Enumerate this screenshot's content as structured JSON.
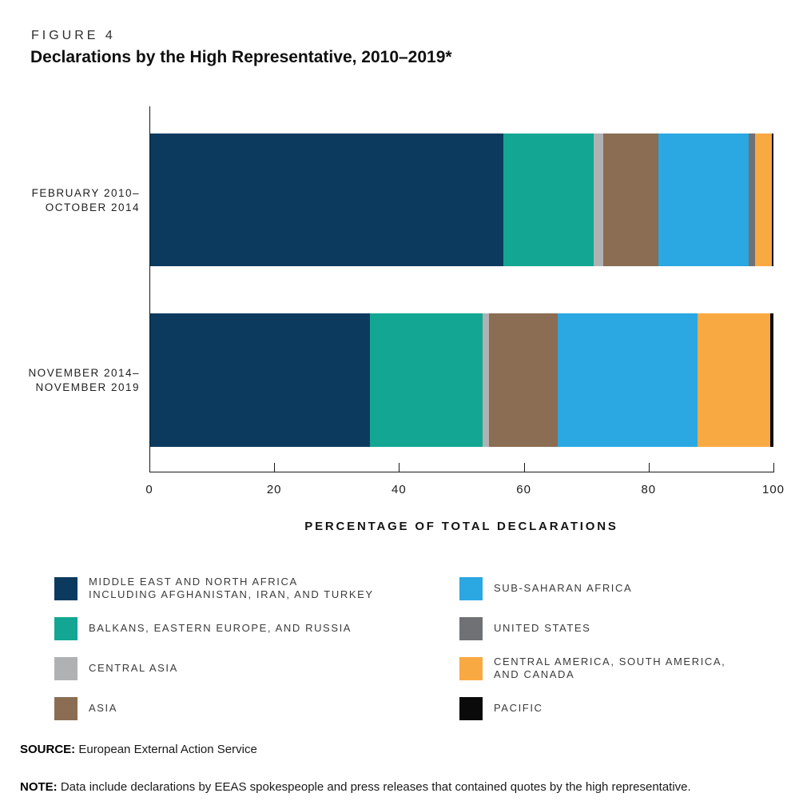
{
  "figure_label": "FIGURE 4",
  "title": "Declarations by the High Representative, 2010–2019*",
  "chart_data": {
    "type": "bar",
    "orientation": "horizontal",
    "stacked": true,
    "xlabel": "PERCENTAGE OF TOTAL DECLARATIONS",
    "xlim": [
      0,
      100
    ],
    "x_ticks": [
      "0",
      "20",
      "40",
      "60",
      "80",
      "100"
    ],
    "grid": false,
    "legend_position": "bottom",
    "categories": [
      {
        "line1": "FEBRUARY 2010–",
        "line2": "OCTOBER 2014"
      },
      {
        "line1": "NOVEMBER 2014–",
        "line2": "NOVEMBER 2019"
      }
    ],
    "series": [
      {
        "name": "MIDDLE EAST AND NORTH AFRICA INCLUDING AFGHANISTAN, IRAN, AND TURKEY",
        "color": "#0c3a5e",
        "values": [
          56.7,
          35.3
        ]
      },
      {
        "name": "BALKANS, EASTERN EUROPE, AND RUSSIA",
        "color": "#13a693",
        "values": [
          14.5,
          18.0
        ]
      },
      {
        "name": "CENTRAL ASIA",
        "color": "#b0b1b3",
        "values": [
          1.5,
          1.0
        ]
      },
      {
        "name": "ASIA",
        "color": "#8a6d52",
        "values": [
          8.8,
          11.1
        ]
      },
      {
        "name": "SUB-SAHARAN AFRICA",
        "color": "#2ba7e1",
        "values": [
          14.5,
          22.4
        ]
      },
      {
        "name": "UNITED STATES",
        "color": "#707174",
        "values": [
          1.1,
          0
        ]
      },
      {
        "name": "CENTRAL AMERICA, SOUTH AMERICA, AND CANADA",
        "color": "#f9a942",
        "values": [
          2.6,
          11.7
        ]
      },
      {
        "name": "PACIFIC",
        "color": "#0a0a0a",
        "values": [
          0.3,
          0.5
        ]
      }
    ]
  },
  "legend": {
    "columns": [
      {
        "items": [
          {
            "key": "middle-east-north-africa",
            "color": "#0c3a5e",
            "lines": [
              "MIDDLE EAST AND NORTH AFRICA",
              "INCLUDING AFGHANISTAN, IRAN, AND TURKEY"
            ]
          },
          {
            "key": "balkans-eastern-europe-russia",
            "color": "#13a693",
            "lines": [
              "BALKANS, EASTERN EUROPE, AND RUSSIA"
            ]
          },
          {
            "key": "central-asia",
            "color": "#b0b1b3",
            "lines": [
              "CENTRAL ASIA"
            ]
          },
          {
            "key": "asia",
            "color": "#8a6d52",
            "lines": [
              "ASIA"
            ]
          }
        ]
      },
      {
        "items": [
          {
            "key": "sub-saharan-africa",
            "color": "#2ba7e1",
            "lines": [
              "SUB-SAHARAN AFRICA"
            ]
          },
          {
            "key": "united-states",
            "color": "#707174",
            "lines": [
              "UNITED STATES"
            ]
          },
          {
            "key": "central-america-south-america-canada",
            "color": "#f9a942",
            "lines": [
              "CENTRAL AMERICA, SOUTH AMERICA,",
              "AND CANADA"
            ]
          },
          {
            "key": "pacific",
            "color": "#0a0a0a",
            "lines": [
              "PACIFIC"
            ]
          }
        ]
      }
    ]
  },
  "source": {
    "label": "SOURCE:",
    "text": "European External Action Service"
  },
  "note": {
    "label": "NOTE:",
    "text": "Data include declarations by EEAS spokespeople and press releases that contained quotes by the high representative."
  }
}
